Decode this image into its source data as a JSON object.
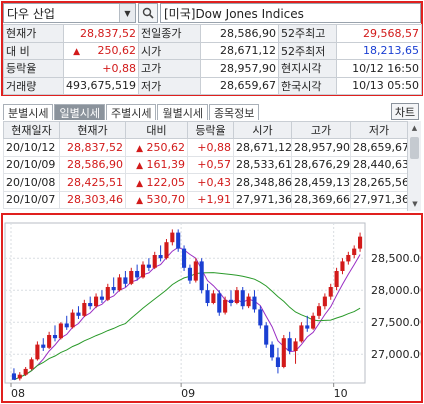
{
  "search": {
    "market_select": "다우 산업",
    "symbol_name": "[미국]Dow Jones Indices"
  },
  "quote": {
    "rows": [
      {
        "l1": "현재가",
        "v1": "28,837,52",
        "l2": "전일종가",
        "v2": "28,586,90",
        "l3": "52주최고",
        "v3": "29,568,57"
      },
      {
        "l1": "대  비",
        "v1": "250,62",
        "l2": "시가",
        "v2": "28,671,12",
        "l3": "52주최저",
        "v3": "18,213,65"
      },
      {
        "l1": "등락율",
        "v1": "+0,88",
        "l2": "고가",
        "v2": "28,957,90",
        "l3": "현지시각",
        "v3": "10/12 16:50"
      },
      {
        "l1": "거래량",
        "v1": "493,675,519",
        "l2": "저가",
        "v2": "28,659,67",
        "l3": "한국시각",
        "v3": "10/13 05:50"
      }
    ]
  },
  "tabs": [
    {
      "label": "분별시세"
    },
    {
      "label": "일별시세"
    },
    {
      "label": "주별시세"
    },
    {
      "label": "월별시세"
    },
    {
      "label": "종목정보"
    }
  ],
  "chart_button": "차트",
  "daily": {
    "headers": [
      "현재일자",
      "현재가",
      "대비",
      "등락율",
      "시가",
      "고가",
      "저가"
    ],
    "rows": [
      {
        "date": "20/10/12",
        "close": "28,837,52",
        "change": "250,62",
        "rate": "+0,88",
        "open": "28,671,12",
        "high": "28,957,90",
        "low": "28,659,67"
      },
      {
        "date": "20/10/09",
        "close": "28,586,90",
        "change": "161,39",
        "rate": "+0,57",
        "open": "28,533,61",
        "high": "28,676,29",
        "low": "28,440,63"
      },
      {
        "date": "20/10/08",
        "close": "28,425,51",
        "change": "122,05",
        "rate": "+0,43",
        "open": "28,348,86",
        "high": "28,459,13",
        "low": "28,265,56"
      },
      {
        "date": "20/10/07",
        "close": "28,303,46",
        "change": "530,70",
        "rate": "+1,91",
        "open": "27,971,36",
        "high": "28,369,66",
        "low": "27,971,36"
      }
    ]
  },
  "colors": {
    "up": "#d21a1a",
    "down": "#1a3fd2",
    "ma_short": "#9a2fc4",
    "ma_long": "#2a9a2a",
    "frame": "#e0201e"
  },
  "chart_data": {
    "type": "line",
    "title": "",
    "y_ticks": [
      "28,500.00",
      "28,000.00",
      "27,500.00",
      "27,000.00"
    ],
    "y_tick_values": [
      28500,
      28000,
      27500,
      27000
    ],
    "x_ticks": [
      "08",
      "09",
      "10"
    ],
    "ylim": [
      26550,
      29050
    ],
    "candles": [
      [
        26700,
        26780,
        26620,
        26600
      ],
      [
        26620,
        26720,
        26590,
        26680
      ],
      [
        26680,
        26800,
        26660,
        26770
      ],
      [
        26770,
        26950,
        26750,
        26920
      ],
      [
        26920,
        27200,
        26900,
        27150
      ],
      [
        27150,
        27250,
        27050,
        27100
      ],
      [
        27100,
        27350,
        27080,
        27300
      ],
      [
        27300,
        27450,
        27200,
        27250
      ],
      [
        27250,
        27500,
        27230,
        27480
      ],
      [
        27480,
        27600,
        27380,
        27420
      ],
      [
        27420,
        27700,
        27400,
        27650
      ],
      [
        27650,
        27750,
        27550,
        27600
      ],
      [
        27600,
        27850,
        27580,
        27800
      ],
      [
        27800,
        27900,
        27700,
        27750
      ],
      [
        27750,
        27950,
        27720,
        27900
      ],
      [
        27900,
        28000,
        27800,
        27850
      ],
      [
        27850,
        28100,
        27830,
        28050
      ],
      [
        28050,
        28200,
        27950,
        28000
      ],
      [
        28000,
        28250,
        27980,
        28200
      ],
      [
        28200,
        28300,
        28050,
        28100
      ],
      [
        28100,
        28350,
        28080,
        28300
      ],
      [
        28300,
        28400,
        28150,
        28200
      ],
      [
        28200,
        28450,
        28180,
        28400
      ],
      [
        28400,
        28500,
        28300,
        28350
      ],
      [
        28350,
        28600,
        28330,
        28550
      ],
      [
        28550,
        28700,
        28450,
        28500
      ],
      [
        28500,
        28800,
        28480,
        28750
      ],
      [
        28750,
        28950,
        28700,
        28900
      ],
      [
        28900,
        28950,
        28600,
        28650
      ],
      [
        28650,
        28700,
        28300,
        28350
      ],
      [
        28350,
        28400,
        28100,
        28150
      ],
      [
        28150,
        28500,
        28120,
        28450
      ],
      [
        28450,
        28500,
        27950,
        28000
      ],
      [
        28000,
        28100,
        27750,
        27800
      ],
      [
        27800,
        28000,
        27780,
        27950
      ],
      [
        27950,
        28000,
        27600,
        27650
      ],
      [
        27650,
        27900,
        27620,
        27850
      ],
      [
        27850,
        28000,
        27750,
        27800
      ],
      [
        27800,
        28050,
        27780,
        28000
      ],
      [
        28000,
        28050,
        27700,
        27750
      ],
      [
        27750,
        27950,
        27720,
        27900
      ],
      [
        27900,
        28000,
        27650,
        27700
      ],
      [
        27700,
        27750,
        27400,
        27450
      ],
      [
        27450,
        27500,
        27100,
        27150
      ],
      [
        27150,
        27200,
        26900,
        26950
      ],
      [
        26950,
        27100,
        26700,
        26800
      ],
      [
        26800,
        27300,
        26780,
        27250
      ],
      [
        27250,
        27350,
        27000,
        27050
      ],
      [
        27050,
        27250,
        26850,
        27200
      ],
      [
        27200,
        27500,
        27180,
        27450
      ],
      [
        27450,
        27600,
        27350,
        27400
      ],
      [
        27400,
        27650,
        27380,
        27600
      ],
      [
        27600,
        27800,
        27550,
        27750
      ],
      [
        27750,
        27950,
        27700,
        27900
      ],
      [
        27900,
        28100,
        27850,
        28050
      ],
      [
        28050,
        28350,
        28000,
        28300
      ],
      [
        28300,
        28500,
        28250,
        28450
      ],
      [
        28450,
        28600,
        28400,
        28550
      ],
      [
        28550,
        28700,
        28500,
        28650
      ],
      [
        28650,
        28900,
        28600,
        28837
      ]
    ]
  }
}
